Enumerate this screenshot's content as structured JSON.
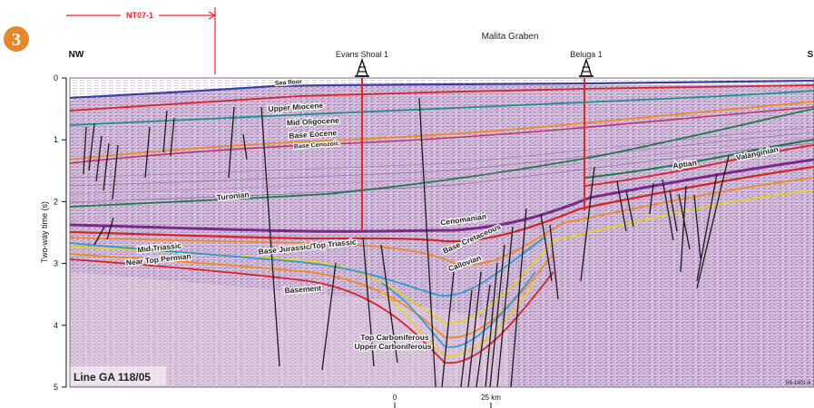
{
  "figure": {
    "badge": "3",
    "badge_color": "#e8872a",
    "direction_left": "NW",
    "direction_right": "S",
    "region": "Malita Graben",
    "bracket_label": "NT07-1",
    "bracket_color": "#e8262a",
    "line_name": "Line GA 118/05",
    "figure_code": "06-1401-4"
  },
  "wells": [
    {
      "name": "Evans Shoal 1",
      "color": "#e8262a"
    },
    {
      "name": "Beluga 1",
      "color": "#e8262a"
    }
  ],
  "axes": {
    "y_label": "Two-way time (s)",
    "y_ticks": [
      "0",
      "1",
      "2",
      "3",
      "4",
      "5"
    ],
    "scale_ticks": [
      "0",
      "25 km"
    ]
  },
  "horizons": [
    {
      "name": "Sea floor",
      "color": "#3b3fa0"
    },
    {
      "name": "Upper Miocene",
      "color": "#d5232a"
    },
    {
      "name": "Mid Oligocene",
      "color": "#1e8f8f"
    },
    {
      "name": "Base Eocene",
      "color": "#f08a24"
    },
    {
      "name": "Base Cenozoic",
      "color": "#c02a6a"
    },
    {
      "name": "Turonian",
      "color": "#1a7a4a"
    },
    {
      "name": "Aptian",
      "color": "#1a7a4a"
    },
    {
      "name": "Valanginian",
      "color": "#d5232a"
    },
    {
      "name": "Cenomanian",
      "color": "#7a2a8a"
    },
    {
      "name": "Base Cretaceous",
      "color": "#d5232a"
    },
    {
      "name": "Callovian",
      "color": "#f08a24"
    },
    {
      "name": "Base Jurassic/Top Triassic",
      "color": "#e8d020"
    },
    {
      "name": "Mid Triassic",
      "color": "#2a9ad0"
    },
    {
      "name": "Near Top Permian",
      "color": "#f08a24"
    },
    {
      "name": "Basement",
      "color": "#d5232a"
    },
    {
      "name": "Top Carboniferous",
      "color": "#2a9ad0"
    },
    {
      "name": "Upper Carboniferous",
      "color": "#e8d020"
    }
  ]
}
